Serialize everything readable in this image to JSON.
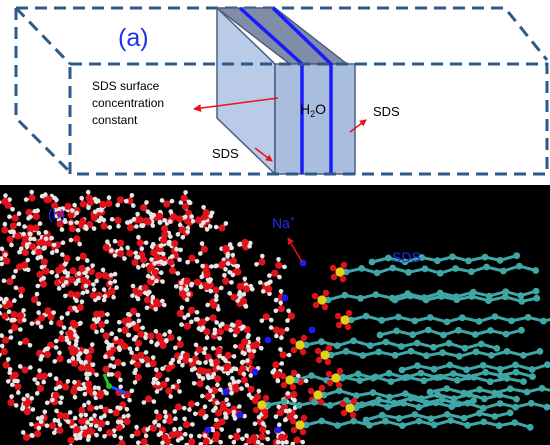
{
  "panel_a": {
    "label": "(a)",
    "water_label": "H",
    "water_subscript": "2",
    "water_suffix": "O",
    "annotation_left": [
      "SDS surface",
      "concentration",
      "constant"
    ],
    "sds_bottom": "SDS",
    "sds_right": "SDS",
    "colors": {
      "dash": "#2e5a8a",
      "slab_front": "#b9cbe6",
      "slab_side": "#a9bedf",
      "slab_top": "#7f8ea6",
      "blue_lines": "#1a1aff",
      "arrow": "#e8141a",
      "label_a": "#1f2ff2"
    }
  },
  "panel_b": {
    "label": "(b)",
    "na_label": "Na",
    "na_superscript": "+",
    "sds_label": "SDS",
    "colors": {
      "background": "#000000",
      "oxygen": "#e0131a",
      "hydrogen": "#e6e6e6",
      "sodium": "#1a1aff",
      "sulfur": "#e3d21a",
      "carbon": "#3fa8a6",
      "label": "#1f2ff2",
      "arrow": "#e8141a"
    }
  }
}
